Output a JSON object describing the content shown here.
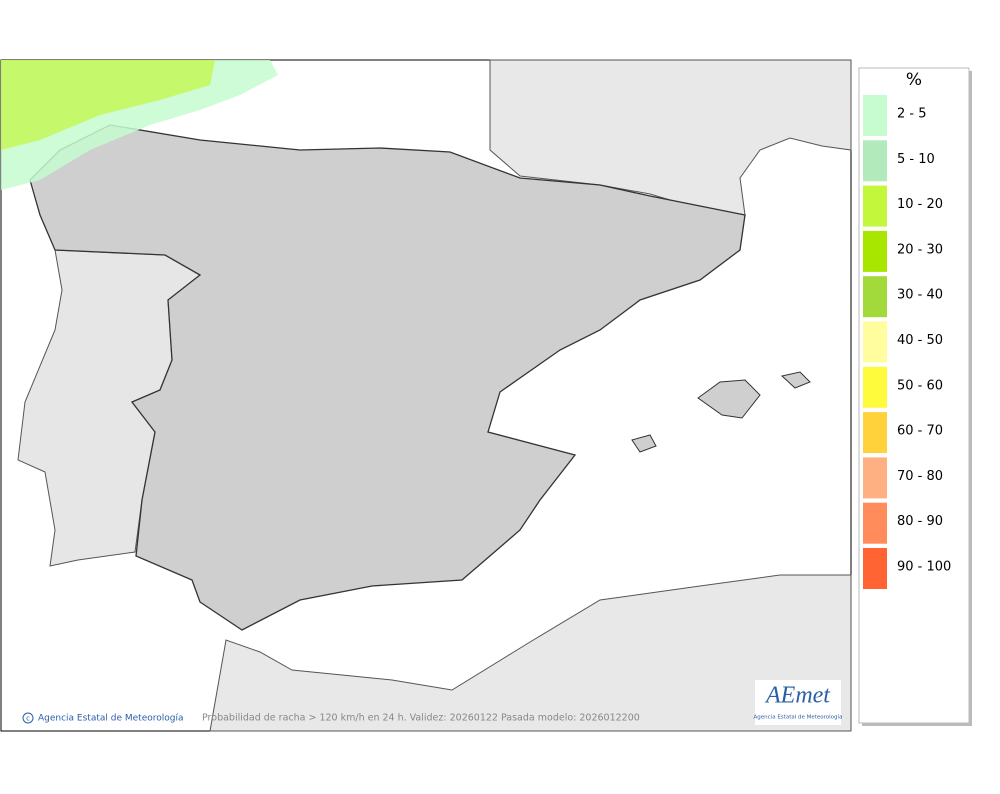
{
  "map": {
    "footer": {
      "credit": "Agencia Estatal de Meteorología",
      "caption": "Probabilidad de racha > 120 km/h en 24 h. Validez: 20260122 Pasada modelo: 2026012200"
    },
    "logo": {
      "text": "AEmet",
      "subtitle": "Agencia Estatal de Meteorología"
    }
  },
  "legend": {
    "title": "%",
    "items": [
      {
        "label": "2 - 5",
        "color": "#c6fccf"
      },
      {
        "label": "5 - 10",
        "color": "#b3eabb"
      },
      {
        "label": "10 - 20",
        "color": "#c2f73c"
      },
      {
        "label": "20 - 30",
        "color": "#a8e600"
      },
      {
        "label": "30 - 40",
        "color": "#a2da3c"
      },
      {
        "label": "40 - 50",
        "color": "#fffd9e"
      },
      {
        "label": "50 - 60",
        "color": "#fefb3c"
      },
      {
        "label": "60 - 70",
        "color": "#ffd23c"
      },
      {
        "label": "70 - 80",
        "color": "#ffb082"
      },
      {
        "label": "80 - 90",
        "color": "#ff8c5a"
      },
      {
        "label": "90 - 100",
        "color": "#ff6432"
      }
    ]
  }
}
